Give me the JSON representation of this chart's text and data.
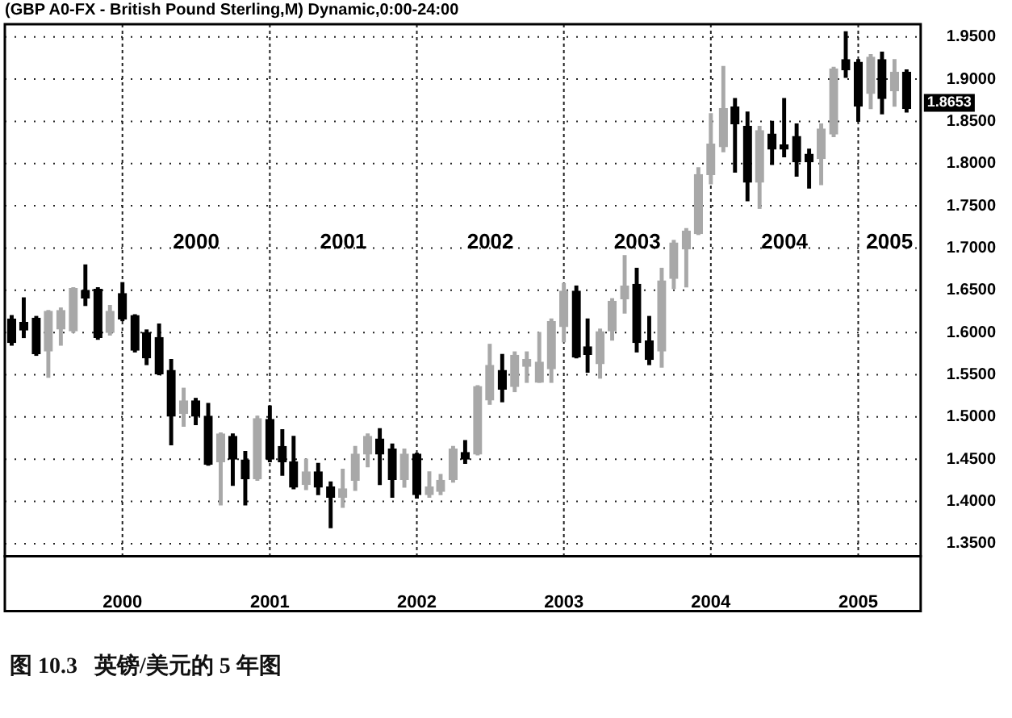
{
  "chart_data": {
    "type": "candlestick",
    "title": "(GBP A0-FX - British Pound Sterling,M) Dynamic,0:00-24:00",
    "colors": [
      "#000000",
      "#000000",
      "#000000",
      "#a8a8a8",
      "#a8a8a8",
      "#a8a8a8",
      "#000000",
      "#000000",
      "#a8a8a8",
      "#000000",
      "#000000",
      "#000000",
      "#000000",
      "#000000",
      "#a8a8a8",
      "#000000",
      "#000000",
      "#a8a8a8",
      "#000000",
      "#000000",
      "#a8a8a8",
      "#000000",
      "#000000",
      "#000000",
      "#a8a8a8",
      "#000000",
      "#000000",
      "#a8a8a8",
      "#a8a8a8",
      "#a8a8a8",
      "#000000",
      "#000000",
      "#a8a8a8",
      "#000000",
      "#a8a8a8",
      "#a8a8a8",
      "#a8a8a8",
      "#000000",
      "#a8a8a8",
      "#a8a8a8",
      "#000000",
      "#a8a8a8",
      "#a8a8a8",
      "#a8a8a8",
      "#a8a8a8",
      "#a8a8a8",
      "#000000",
      "#000000",
      "#a8a8a8",
      "#a8a8a8",
      "#a8a8a8",
      "#000000",
      "#000000",
      "#a8a8a8",
      "#a8a8a8",
      "#a8a8a8",
      "#a8a8a8",
      "#a8a8a8",
      "#a8a8a8",
      "#000000",
      "#000000",
      "#a8a8a8",
      "#000000",
      "#000000",
      "#000000",
      "#000000",
      "#a8a8a8",
      "#a8a8a8",
      "#000000",
      "#000000",
      "#a8a8a8",
      "#000000",
      "#a8a8a8",
      "#000000"
    ],
    "x": [
      "1999-04",
      "1999-05",
      "1999-06",
      "1999-07",
      "1999-08",
      "1999-09",
      "1999-10",
      "1999-11",
      "1999-12",
      "2000-01",
      "2000-02",
      "2000-03",
      "2000-04",
      "2000-05",
      "2000-06",
      "2000-07",
      "2000-08",
      "2000-09",
      "2000-10",
      "2000-11",
      "2000-12",
      "2001-01",
      "2001-02",
      "2001-03",
      "2001-04",
      "2001-05",
      "2001-06",
      "2001-07",
      "2001-08",
      "2001-09",
      "2001-10",
      "2001-11",
      "2001-12",
      "2002-01",
      "2002-02",
      "2002-03",
      "2002-04",
      "2002-05",
      "2002-06",
      "2002-07",
      "2002-08",
      "2002-09",
      "2002-10",
      "2002-11",
      "2002-12",
      "2003-01",
      "2003-02",
      "2003-03",
      "2003-04",
      "2003-05",
      "2003-06",
      "2003-07",
      "2003-08",
      "2003-09",
      "2003-10",
      "2003-11",
      "2003-12",
      "2004-01",
      "2004-02",
      "2004-03",
      "2004-04",
      "2004-05",
      "2004-06",
      "2004-07",
      "2004-08",
      "2004-09",
      "2004-10",
      "2004-11",
      "2004-12",
      "2005-01",
      "2005-02",
      "2005-03",
      "2005-04",
      "2005-05"
    ],
    "ohlc": [
      [
        1.616,
        1.62,
        1.585,
        1.588
      ],
      [
        1.612,
        1.641,
        1.594,
        1.603
      ],
      [
        1.617,
        1.619,
        1.573,
        1.575
      ],
      [
        1.578,
        1.626,
        1.547,
        1.625
      ],
      [
        1.604,
        1.629,
        1.585,
        1.626
      ],
      [
        1.602,
        1.653,
        1.6,
        1.652
      ],
      [
        1.65,
        1.68,
        1.632,
        1.641
      ],
      [
        1.651,
        1.653,
        1.592,
        1.594
      ],
      [
        1.6,
        1.632,
        1.597,
        1.625
      ],
      [
        1.646,
        1.659,
        1.614,
        1.616
      ],
      [
        1.62,
        1.621,
        1.577,
        1.579
      ],
      [
        1.6,
        1.603,
        1.562,
        1.57
      ],
      [
        1.594,
        1.61,
        1.55,
        1.551
      ],
      [
        1.555,
        1.568,
        1.467,
        1.501
      ],
      [
        1.504,
        1.534,
        1.489,
        1.519
      ],
      [
        1.519,
        1.522,
        1.491,
        1.501
      ],
      [
        1.501,
        1.516,
        1.443,
        1.444
      ],
      [
        1.447,
        1.481,
        1.396,
        1.48
      ],
      [
        1.477,
        1.48,
        1.419,
        1.45
      ],
      [
        1.449,
        1.459,
        1.396,
        1.427
      ],
      [
        1.427,
        1.501,
        1.425,
        1.498
      ],
      [
        1.497,
        1.513,
        1.447,
        1.45
      ],
      [
        1.465,
        1.485,
        1.431,
        1.447
      ],
      [
        1.447,
        1.477,
        1.415,
        1.417
      ],
      [
        1.42,
        1.45,
        1.414,
        1.435
      ],
      [
        1.435,
        1.445,
        1.408,
        1.417
      ],
      [
        1.417,
        1.423,
        1.369,
        1.405
      ],
      [
        1.405,
        1.438,
        1.393,
        1.415
      ],
      [
        1.425,
        1.465,
        1.413,
        1.456
      ],
      [
        1.456,
        1.48,
        1.441,
        1.477
      ],
      [
        1.474,
        1.486,
        1.42,
        1.456
      ],
      [
        1.462,
        1.468,
        1.405,
        1.426
      ],
      [
        1.426,
        1.462,
        1.417,
        1.456
      ],
      [
        1.456,
        1.457,
        1.404,
        1.408
      ],
      [
        1.408,
        1.435,
        1.405,
        1.417
      ],
      [
        1.412,
        1.432,
        1.408,
        1.425
      ],
      [
        1.426,
        1.465,
        1.423,
        1.462
      ],
      [
        1.458,
        1.472,
        1.445,
        1.45
      ],
      [
        1.456,
        1.537,
        1.455,
        1.536
      ],
      [
        1.52,
        1.586,
        1.515,
        1.561
      ],
      [
        1.555,
        1.574,
        1.518,
        1.533
      ],
      [
        1.536,
        1.577,
        1.53,
        1.573
      ],
      [
        1.56,
        1.577,
        1.541,
        1.568
      ],
      [
        1.541,
        1.6,
        1.541,
        1.565
      ],
      [
        1.557,
        1.616,
        1.541,
        1.613
      ],
      [
        1.607,
        1.658,
        1.589,
        1.649
      ],
      [
        1.649,
        1.655,
        1.57,
        1.571
      ],
      [
        1.583,
        1.616,
        1.553,
        1.574
      ],
      [
        1.563,
        1.604,
        1.546,
        1.601
      ],
      [
        1.602,
        1.64,
        1.591,
        1.637
      ],
      [
        1.64,
        1.691,
        1.623,
        1.655
      ],
      [
        1.657,
        1.676,
        1.577,
        1.588
      ],
      [
        1.59,
        1.619,
        1.562,
        1.568
      ],
      [
        1.578,
        1.676,
        1.559,
        1.661
      ],
      [
        1.664,
        1.709,
        1.652,
        1.706
      ],
      [
        1.699,
        1.723,
        1.654,
        1.72
      ],
      [
        1.717,
        1.795,
        1.716,
        1.787
      ],
      [
        1.787,
        1.859,
        1.776,
        1.823
      ],
      [
        1.82,
        1.915,
        1.814,
        1.865
      ],
      [
        1.867,
        1.877,
        1.79,
        1.847
      ],
      [
        1.844,
        1.861,
        1.756,
        1.778
      ],
      [
        1.778,
        1.844,
        1.747,
        1.839
      ],
      [
        1.835,
        1.85,
        1.799,
        1.817
      ],
      [
        1.822,
        1.877,
        1.808,
        1.817
      ],
      [
        1.832,
        1.847,
        1.785,
        1.802
      ],
      [
        1.811,
        1.817,
        1.771,
        1.802
      ],
      [
        1.806,
        1.847,
        1.775,
        1.841
      ],
      [
        1.835,
        1.914,
        1.832,
        1.912
      ],
      [
        1.923,
        1.956,
        1.902,
        1.911
      ],
      [
        1.92,
        1.923,
        1.85,
        1.868
      ],
      [
        1.883,
        1.929,
        1.865,
        1.926
      ],
      [
        1.923,
        1.932,
        1.859,
        1.877
      ],
      [
        1.886,
        1.923,
        1.868,
        1.908
      ],
      [
        1.908,
        1.911,
        1.861,
        1.8653
      ]
    ],
    "xlim": [
      "1999-03-15",
      "2005-06-05"
    ],
    "xticks": [
      {
        "value": "2000-01-01",
        "label": "2000"
      },
      {
        "value": "2001-01-01",
        "label": "2001"
      },
      {
        "value": "2002-01-01",
        "label": "2002"
      },
      {
        "value": "2003-01-01",
        "label": "2003"
      },
      {
        "value": "2004-01-01",
        "label": "2004"
      },
      {
        "value": "2005-01-01",
        "label": "2005"
      }
    ],
    "ylim": [
      1.335,
      1.965
    ],
    "yticks": [
      {
        "value": 1.35,
        "label": "1.3500"
      },
      {
        "value": 1.4,
        "label": "1.4000"
      },
      {
        "value": 1.45,
        "label": "1.4500"
      },
      {
        "value": 1.5,
        "label": "1.5000"
      },
      {
        "value": 1.55,
        "label": "1.5500"
      },
      {
        "value": 1.6,
        "label": "1.6000"
      },
      {
        "value": 1.65,
        "label": "1.6500"
      },
      {
        "value": 1.7,
        "label": "1.7000"
      },
      {
        "value": 1.75,
        "label": "1.7500"
      },
      {
        "value": 1.8,
        "label": "1.8000"
      },
      {
        "value": 1.85,
        "label": "1.8500"
      },
      {
        "value": 1.9,
        "label": "1.9000"
      },
      {
        "value": 1.95,
        "label": "1.9500"
      }
    ],
    "grid": true,
    "annotations": [
      "2000",
      "2001",
      "2002",
      "2003",
      "2004",
      "2005",
      {
        "text": "1.8653",
        "x": "2005-05",
        "y": 1.8653
      },
      "图 10.3   英镑/美元的 5 年图"
    ]
  }
}
